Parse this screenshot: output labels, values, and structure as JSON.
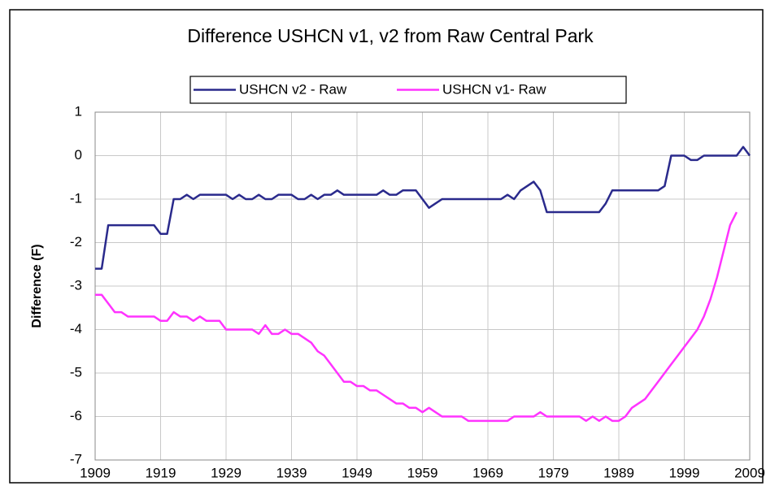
{
  "chart_data": {
    "type": "line",
    "title": "Difference USHCN v1, v2 from Raw Central Park",
    "y_label": "Difference (F)",
    "x": [
      1909,
      1910,
      1911,
      1912,
      1913,
      1914,
      1915,
      1916,
      1917,
      1918,
      1919,
      1920,
      1921,
      1922,
      1923,
      1924,
      1925,
      1926,
      1927,
      1928,
      1929,
      1930,
      1931,
      1932,
      1933,
      1934,
      1935,
      1936,
      1937,
      1938,
      1939,
      1940,
      1941,
      1942,
      1943,
      1944,
      1945,
      1946,
      1947,
      1948,
      1949,
      1950,
      1951,
      1952,
      1953,
      1954,
      1955,
      1956,
      1957,
      1958,
      1959,
      1960,
      1961,
      1962,
      1963,
      1964,
      1965,
      1966,
      1967,
      1968,
      1969,
      1970,
      1971,
      1972,
      1973,
      1974,
      1975,
      1976,
      1977,
      1978,
      1979,
      1980,
      1981,
      1982,
      1983,
      1984,
      1985,
      1986,
      1987,
      1988,
      1989,
      1990,
      1991,
      1992,
      1993,
      1994,
      1995,
      1996,
      1997,
      1998,
      1999,
      2000,
      2001,
      2002,
      2003,
      2004,
      2005,
      2006,
      2007,
      2008,
      2009
    ],
    "series": [
      {
        "name": "USHCN v2 - Raw",
        "color": "#2a2a8c",
        "values": [
          -2.6,
          -2.6,
          -1.6,
          -1.6,
          -1.6,
          -1.6,
          -1.6,
          -1.6,
          -1.6,
          -1.6,
          -1.8,
          -1.8,
          -1.0,
          -1.0,
          -0.9,
          -1.0,
          -0.9,
          -0.9,
          -0.9,
          -0.9,
          -0.9,
          -1.0,
          -0.9,
          -1.0,
          -1.0,
          -0.9,
          -1.0,
          -1.0,
          -0.9,
          -0.9,
          -0.9,
          -1.0,
          -1.0,
          -0.9,
          -1.0,
          -0.9,
          -0.9,
          -0.8,
          -0.9,
          -0.9,
          -0.9,
          -0.9,
          -0.9,
          -0.9,
          -0.8,
          -0.9,
          -0.9,
          -0.8,
          -0.8,
          -0.8,
          -1.0,
          -1.2,
          -1.1,
          -1.0,
          -1.0,
          -1.0,
          -1.0,
          -1.0,
          -1.0,
          -1.0,
          -1.0,
          -1.0,
          -1.0,
          -0.9,
          -1.0,
          -0.8,
          -0.7,
          -0.6,
          -0.8,
          -1.3,
          -1.3,
          -1.3,
          -1.3,
          -1.3,
          -1.3,
          -1.3,
          -1.3,
          -1.3,
          -1.1,
          -0.8,
          -0.8,
          -0.8,
          -0.8,
          -0.8,
          -0.8,
          -0.8,
          -0.8,
          -0.7,
          0,
          0,
          0,
          -0.1,
          -0.1,
          0,
          0,
          0,
          0,
          0,
          0,
          0.2,
          0
        ]
      },
      {
        "name": "USHCN v1- Raw",
        "color": "#ff33ff",
        "values": [
          -3.2,
          -3.2,
          -3.4,
          -3.6,
          -3.6,
          -3.7,
          -3.7,
          -3.7,
          -3.7,
          -3.7,
          -3.8,
          -3.8,
          -3.6,
          -3.7,
          -3.7,
          -3.8,
          -3.7,
          -3.8,
          -3.8,
          -3.8,
          -4.0,
          -4.0,
          -4.0,
          -4.0,
          -4.0,
          -4.1,
          -3.9,
          -4.1,
          -4.1,
          -4.0,
          -4.1,
          -4.1,
          -4.2,
          -4.3,
          -4.5,
          -4.6,
          -4.8,
          -5.0,
          -5.2,
          -5.2,
          -5.3,
          -5.3,
          -5.4,
          -5.4,
          -5.5,
          -5.6,
          -5.7,
          -5.7,
          -5.8,
          -5.8,
          -5.9,
          -5.8,
          -5.9,
          -6.0,
          -6.0,
          -6.0,
          -6.0,
          -6.1,
          -6.1,
          -6.1,
          -6.1,
          -6.1,
          -6.1,
          -6.1,
          -6.0,
          -6.0,
          -6.0,
          -6.0,
          -5.9,
          -6.0,
          -6.0,
          -6.0,
          -6.0,
          -6.0,
          -6.0,
          -6.1,
          -6.0,
          -6.1,
          -6.0,
          -6.1,
          -6.1,
          -6.0,
          -5.8,
          -5.7,
          -5.6,
          -5.4,
          -5.2,
          -5.0,
          -4.8,
          -4.6,
          -4.4,
          -4.2,
          -4.0,
          -3.7,
          -3.3,
          -2.8,
          -2.2,
          -1.6,
          -1.3,
          null,
          null
        ]
      }
    ],
    "xlim": [
      1909,
      2009
    ],
    "xticks": [
      1909,
      1919,
      1929,
      1939,
      1949,
      1959,
      1969,
      1979,
      1989,
      1999,
      2009
    ],
    "ylim": [
      -7,
      1
    ],
    "yticks": [
      1,
      0,
      -1,
      -2,
      -3,
      -4,
      -5,
      -6,
      -7
    ],
    "grid": true,
    "legend": "top"
  }
}
